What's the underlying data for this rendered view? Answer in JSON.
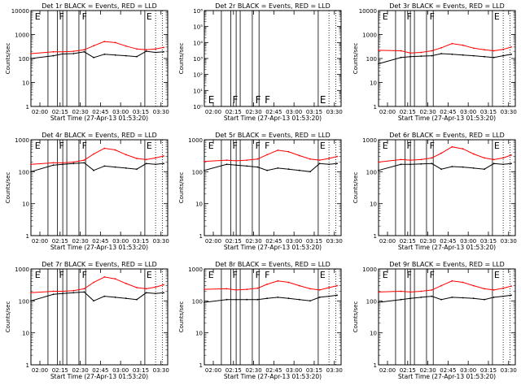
{
  "chart_data": [
    {
      "type": "line",
      "title": "Det 1r BLACK = Events, RED = LLD",
      "xlabel": "Start Time (27-Apr-13 01:53:20)",
      "ylabel": "Counts/sec",
      "yscale": "log",
      "ylim": [
        1,
        10000
      ],
      "yticks": [
        "1",
        "10",
        "100",
        "1000",
        "10000"
      ],
      "xticks": [
        "02:00",
        "02:15",
        "02:30",
        "02:45",
        "03:00",
        "03:15",
        "03:30"
      ],
      "flag_letters": [
        "E",
        "F",
        "F",
        "E"
      ],
      "series": [
        {
          "color": "#000000",
          "x": [
            "01:53:20",
            "02:10",
            "02:17",
            "02:25",
            "02:33",
            "02:40",
            "02:48",
            "02:56",
            "03:04",
            "03:12",
            "03:19",
            "03:26",
            "03:32"
          ],
          "values": [
            100,
            130,
            155,
            160,
            190,
            110,
            150,
            140,
            130,
            120,
            200,
            180,
            190
          ]
        },
        {
          "color": "#ff0000",
          "x": [
            "01:53:20",
            "02:10",
            "02:17",
            "02:25",
            "02:33",
            "02:40",
            "02:48",
            "02:56",
            "03:04",
            "03:12",
            "03:19",
            "03:26",
            "03:32"
          ],
          "values": [
            160,
            190,
            190,
            200,
            230,
            340,
            510,
            460,
            330,
            250,
            230,
            250,
            290
          ]
        }
      ]
    },
    {
      "type": "line",
      "title": "Det 2r BLACK = Events, RED = LLD",
      "xlabel": "Start Time (27-Apr-13 01:53:20)",
      "ylabel": "Counts/sec",
      "yscale": "log",
      "ylim": [
        1,
        1000000
      ],
      "yticks": [
        "10⁰",
        "10¹",
        "10²",
        "10³",
        "10⁴",
        "10⁵",
        "10⁶"
      ],
      "xticks": [
        "02:00",
        "02:15",
        "02:30",
        "02:45",
        "03:00",
        "03:15",
        "03:30"
      ],
      "flag_letters": [
        "E",
        "F",
        "F",
        "F",
        "E"
      ],
      "series": []
    },
    {
      "type": "line",
      "title": "Det 3r BLACK = Events, RED = LLD",
      "xlabel": "Start Time (27-Apr-13 01:53:20)",
      "ylabel": "Counts/sec",
      "yscale": "log",
      "ylim": [
        1,
        10000
      ],
      "yticks": [
        "1",
        "10",
        "100",
        "1000",
        "10000"
      ],
      "xticks": [
        "02:00",
        "02:15",
        "02:30",
        "02:45",
        "03:00",
        "03:15",
        "03:30"
      ],
      "flag_letters": [
        "E",
        "F",
        "F",
        "E"
      ],
      "series": [
        {
          "color": "#000000",
          "x": [
            "01:53:20",
            "02:10",
            "02:17",
            "02:25",
            "02:33",
            "02:40",
            "02:48",
            "02:56",
            "03:04",
            "03:12",
            "03:19",
            "03:26",
            "03:32"
          ],
          "values": [
            60,
            110,
            120,
            125,
            130,
            160,
            150,
            140,
            130,
            120,
            110,
            130,
            150
          ]
        },
        {
          "color": "#ff0000",
          "x": [
            "01:53:20",
            "02:10",
            "02:17",
            "02:25",
            "02:33",
            "02:40",
            "02:48",
            "02:56",
            "03:04",
            "03:12",
            "03:19",
            "03:26",
            "03:32"
          ],
          "values": [
            220,
            210,
            170,
            180,
            210,
            280,
            420,
            360,
            270,
            230,
            210,
            240,
            300
          ]
        }
      ]
    },
    {
      "type": "line",
      "title": "Det 4r BLACK = Events, RED = LLD",
      "xlabel": "Start Time (27-Apr-13 01:53:20)",
      "ylabel": "Counts/sec",
      "yscale": "log",
      "ylim": [
        1,
        1000
      ],
      "yticks": [
        "1",
        "10",
        "100",
        "1000"
      ],
      "xticks": [
        "02:00",
        "02:15",
        "02:30",
        "02:45",
        "03:00",
        "03:15",
        "03:30"
      ],
      "flag_letters": [
        "E",
        "F",
        "F",
        "E"
      ],
      "series": [
        {
          "color": "#000000",
          "x": [
            "01:53:20",
            "02:10",
            "02:17",
            "02:25",
            "02:33",
            "02:40",
            "02:48",
            "02:56",
            "03:04",
            "03:12",
            "03:19",
            "03:26",
            "03:32"
          ],
          "values": [
            100,
            160,
            170,
            180,
            190,
            110,
            150,
            140,
            130,
            120,
            180,
            170,
            180
          ]
        },
        {
          "color": "#ff0000",
          "x": [
            "01:53:20",
            "02:10",
            "02:17",
            "02:25",
            "02:33",
            "02:40",
            "02:48",
            "02:56",
            "03:04",
            "03:12",
            "03:19",
            "03:26",
            "03:32"
          ],
          "values": [
            170,
            190,
            190,
            200,
            230,
            360,
            540,
            480,
            340,
            260,
            240,
            270,
            310
          ]
        }
      ]
    },
    {
      "type": "line",
      "title": "Det 5r BLACK = Events, RED = LLD",
      "xlabel": "Start Time (27-Apr-13 01:53:20)",
      "ylabel": "Counts/sec",
      "yscale": "log",
      "ylim": [
        1,
        1000
      ],
      "yticks": [
        "1",
        "10",
        "100",
        "1000"
      ],
      "xticks": [
        "02:00",
        "02:15",
        "02:30",
        "02:45",
        "03:00",
        "03:15",
        "03:30"
      ],
      "flag_letters": [
        "E",
        "F",
        "F",
        "F",
        "E"
      ],
      "series": [
        {
          "color": "#000000",
          "x": [
            "01:53:20",
            "02:10",
            "02:17",
            "02:25",
            "02:33",
            "02:40",
            "02:48",
            "02:56",
            "03:04",
            "03:12",
            "03:19",
            "03:26",
            "03:32"
          ],
          "values": [
            110,
            170,
            160,
            150,
            140,
            110,
            130,
            120,
            110,
            100,
            180,
            170,
            180
          ]
        },
        {
          "color": "#ff0000",
          "x": [
            "01:53:20",
            "02:10",
            "02:17",
            "02:25",
            "02:33",
            "02:40",
            "02:48",
            "02:56",
            "03:04",
            "03:12",
            "03:19",
            "03:26",
            "03:32"
          ],
          "values": [
            210,
            230,
            220,
            230,
            250,
            340,
            470,
            420,
            320,
            250,
            230,
            260,
            300
          ]
        }
      ]
    },
    {
      "type": "line",
      "title": "Det 6r BLACK = Events, RED = LLD",
      "xlabel": "Start Time (27-Apr-13 01:53:20)",
      "ylabel": "Counts/sec",
      "yscale": "log",
      "ylim": [
        1,
        1000
      ],
      "yticks": [
        "1",
        "10",
        "100",
        "1000"
      ],
      "xticks": [
        "02:00",
        "02:15",
        "02:30",
        "02:45",
        "03:00",
        "03:15",
        "03:30"
      ],
      "flag_letters": [
        "E",
        "F",
        "F",
        "E"
      ],
      "series": [
        {
          "color": "#000000",
          "x": [
            "01:53:20",
            "02:10",
            "02:17",
            "02:25",
            "02:33",
            "02:40",
            "02:48",
            "02:56",
            "03:04",
            "03:12",
            "03:19",
            "03:26",
            "03:32"
          ],
          "values": [
            110,
            170,
            170,
            175,
            180,
            120,
            145,
            140,
            130,
            120,
            180,
            170,
            180
          ]
        },
        {
          "color": "#ff0000",
          "x": [
            "01:53:20",
            "02:10",
            "02:17",
            "02:25",
            "02:33",
            "02:40",
            "02:48",
            "02:56",
            "03:04",
            "03:12",
            "03:19",
            "03:26",
            "03:32"
          ],
          "values": [
            200,
            240,
            230,
            240,
            270,
            380,
            600,
            520,
            360,
            270,
            240,
            270,
            330
          ]
        }
      ]
    },
    {
      "type": "line",
      "title": "Det 7r BLACK = Events, RED = LLD",
      "xlabel": "Start Time (27-Apr-13 01:53:20)",
      "ylabel": "Counts/sec",
      "yscale": "log",
      "ylim": [
        1,
        1000
      ],
      "yticks": [
        "1",
        "10",
        "100",
        "1000"
      ],
      "xticks": [
        "02:00",
        "02:15",
        "02:30",
        "02:45",
        "03:00",
        "03:15",
        "03:30"
      ],
      "flag_letters": [
        "E",
        "F",
        "F",
        "E"
      ],
      "series": [
        {
          "color": "#000000",
          "x": [
            "01:53:20",
            "02:10",
            "02:17",
            "02:25",
            "02:33",
            "02:40",
            "02:48",
            "02:56",
            "03:04",
            "03:12",
            "03:19",
            "03:26",
            "03:32"
          ],
          "values": [
            100,
            160,
            170,
            180,
            190,
            100,
            140,
            130,
            120,
            110,
            180,
            170,
            180
          ]
        },
        {
          "color": "#ff0000",
          "x": [
            "01:53:20",
            "02:10",
            "02:17",
            "02:25",
            "02:33",
            "02:40",
            "02:48",
            "02:56",
            "03:04",
            "03:12",
            "03:19",
            "03:26",
            "03:32"
          ],
          "values": [
            180,
            200,
            200,
            210,
            240,
            380,
            560,
            490,
            350,
            260,
            240,
            270,
            320
          ]
        }
      ]
    },
    {
      "type": "line",
      "title": "Det 8r BLACK = Events, RED = LLD",
      "xlabel": "Start Time (27-Apr-13 01:53:20)",
      "ylabel": "Counts/sec",
      "yscale": "log",
      "ylim": [
        1,
        1000
      ],
      "yticks": [
        "1",
        "10",
        "100",
        "1000"
      ],
      "xticks": [
        "02:00",
        "02:15",
        "02:30",
        "02:45",
        "03:00",
        "03:15",
        "03:30"
      ],
      "flag_letters": [
        "E",
        "F",
        "F",
        "F",
        "E"
      ],
      "series": [
        {
          "color": "#000000",
          "x": [
            "01:53:20",
            "02:10",
            "02:17",
            "02:25",
            "02:33",
            "02:40",
            "02:48",
            "02:56",
            "03:04",
            "03:12",
            "03:19",
            "03:26",
            "03:32"
          ],
          "values": [
            90,
            110,
            110,
            110,
            110,
            120,
            130,
            120,
            110,
            100,
            130,
            140,
            150
          ]
        },
        {
          "color": "#ff0000",
          "x": [
            "01:53:20",
            "02:10",
            "02:17",
            "02:25",
            "02:33",
            "02:40",
            "02:48",
            "02:56",
            "03:04",
            "03:12",
            "03:19",
            "03:26",
            "03:32"
          ],
          "values": [
            230,
            240,
            220,
            230,
            250,
            330,
            420,
            380,
            300,
            240,
            220,
            260,
            300
          ]
        }
      ]
    },
    {
      "type": "line",
      "title": "Det 9r BLACK = Events, RED = LLD",
      "xlabel": "Start Time (27-Apr-13 01:53:20)",
      "ylabel": "Counts/sec",
      "yscale": "log",
      "ylim": [
        1,
        1000
      ],
      "yticks": [
        "1",
        "10",
        "100",
        "1000"
      ],
      "xticks": [
        "02:00",
        "02:15",
        "02:30",
        "02:45",
        "03:00",
        "03:15",
        "03:30"
      ],
      "flag_letters": [
        "E",
        "F",
        "F",
        "E"
      ],
      "series": [
        {
          "color": "#000000",
          "x": [
            "01:53:20",
            "02:10",
            "02:17",
            "02:25",
            "02:33",
            "02:40",
            "02:48",
            "02:56",
            "03:04",
            "03:12",
            "03:19",
            "03:26",
            "03:32"
          ],
          "values": [
            90,
            110,
            120,
            130,
            140,
            110,
            130,
            125,
            120,
            110,
            130,
            140,
            150
          ]
        },
        {
          "color": "#ff0000",
          "x": [
            "01:53:20",
            "02:10",
            "02:17",
            "02:25",
            "02:33",
            "02:40",
            "02:48",
            "02:56",
            "03:04",
            "03:12",
            "03:19",
            "03:26",
            "03:32"
          ],
          "values": [
            190,
            200,
            190,
            200,
            220,
            300,
            420,
            380,
            300,
            240,
            220,
            250,
            290
          ]
        }
      ]
    }
  ]
}
